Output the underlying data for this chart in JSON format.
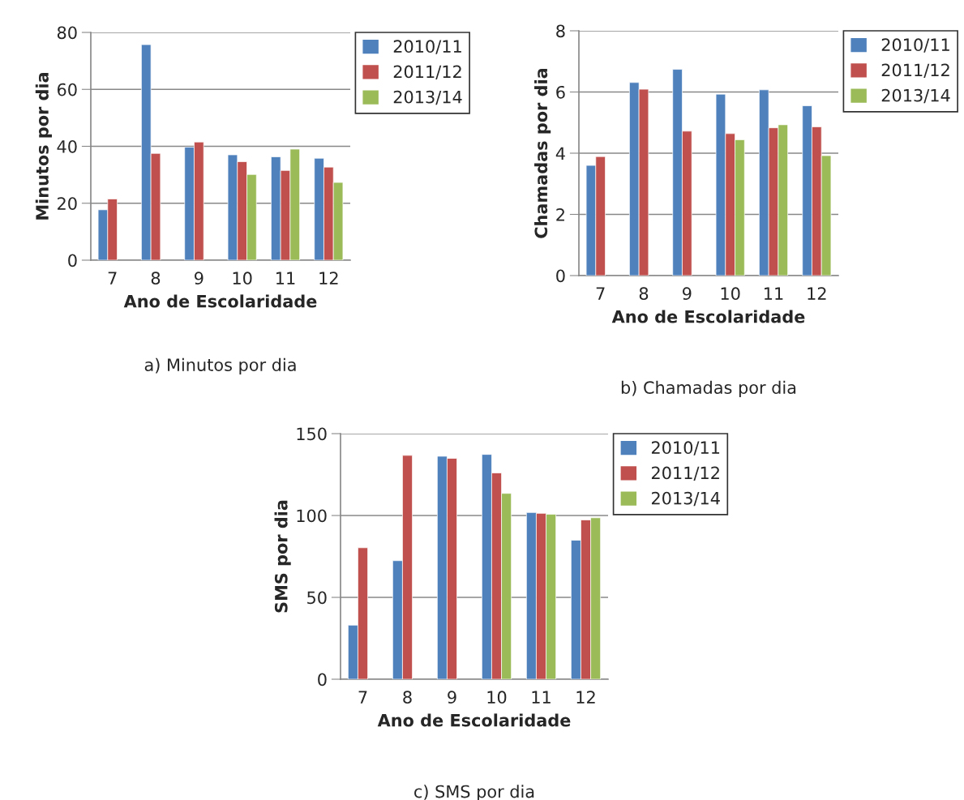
{
  "chart_data": [
    {
      "type": "bar",
      "xlabel": "Ano de Escolaridade",
      "ylabel": "Minutos por dia",
      "categories": [
        "7",
        "8",
        "9",
        "10",
        "11",
        "12"
      ],
      "ylim": [
        0,
        80
      ],
      "yticks": [
        0,
        20,
        40,
        60,
        80
      ],
      "grid": "y",
      "legend": "top right",
      "annotations": [
        "a) Minutos por dia"
      ],
      "series": [
        {
          "name": "2010/11",
          "color": "#4f81bd",
          "values": [
            17.7,
            75.7,
            39.7,
            37.0,
            36.3,
            35.8
          ]
        },
        {
          "name": "2011/12",
          "color": "#c0504d",
          "values": [
            21.5,
            37.5,
            41.5,
            34.6,
            31.5,
            32.7
          ]
        },
        {
          "name": "2013/14",
          "color": "#9bbb59",
          "values": [
            null,
            null,
            null,
            30.1,
            39.0,
            27.3
          ]
        }
      ]
    },
    {
      "type": "bar",
      "xlabel": "Ano de Escolaridade",
      "ylabel": "Chamadas por dia",
      "categories": [
        "7",
        "8",
        "9",
        "10",
        "11",
        "12"
      ],
      "ylim": [
        0,
        8
      ],
      "yticks": [
        0,
        2,
        4,
        6,
        8
      ],
      "grid": "y",
      "legend": "top right",
      "annotations": [
        "b) Chamadas por dia"
      ],
      "series": [
        {
          "name": "2010/11",
          "color": "#4f81bd",
          "values": [
            3.6,
            6.31,
            6.74,
            5.93,
            6.07,
            5.55
          ]
        },
        {
          "name": "2011/12",
          "color": "#c0504d",
          "values": [
            3.89,
            6.09,
            4.72,
            4.64,
            4.83,
            4.86
          ]
        },
        {
          "name": "2013/14",
          "color": "#9bbb59",
          "values": [
            null,
            null,
            null,
            4.44,
            4.93,
            3.92
          ]
        }
      ]
    },
    {
      "type": "bar",
      "xlabel": "Ano de Escolaridade",
      "ylabel": "SMS por dia",
      "categories": [
        "7",
        "8",
        "9",
        "10",
        "11",
        "12"
      ],
      "ylim": [
        0,
        150
      ],
      "yticks": [
        0,
        50,
        100,
        150
      ],
      "grid": "y",
      "legend": "top right",
      "annotations": [
        "c) SMS por dia"
      ],
      "series": [
        {
          "name": "2010/11",
          "color": "#4f81bd",
          "values": [
            33,
            72.4,
            136.2,
            137.3,
            101.8,
            84.9
          ]
        },
        {
          "name": "2011/12",
          "color": "#c0504d",
          "values": [
            80.3,
            136.7,
            134.9,
            126,
            101.3,
            97.3
          ]
        },
        {
          "name": "2013/14",
          "color": "#9bbb59",
          "values": [
            null,
            null,
            null,
            113.5,
            100.8,
            98.6
          ]
        }
      ]
    }
  ]
}
